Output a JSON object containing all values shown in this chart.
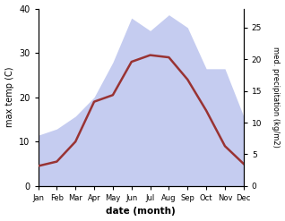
{
  "months": [
    "Jan",
    "Feb",
    "Mar",
    "Apr",
    "May",
    "Jun",
    "Jul",
    "Aug",
    "Sep",
    "Oct",
    "Nov",
    "Dec"
  ],
  "max_temp": [
    4.5,
    5.5,
    10.0,
    19.0,
    20.5,
    28.0,
    29.5,
    29.0,
    24.0,
    17.0,
    9.0,
    5.0
  ],
  "precipitation": [
    8.0,
    9.0,
    11.0,
    14.0,
    19.5,
    26.5,
    24.5,
    27.0,
    25.0,
    18.5,
    18.5,
    11.0
  ],
  "temp_color": "#993333",
  "precip_fill_color": "#c5ccf0",
  "temp_ylim": [
    0,
    40
  ],
  "precip_ylim": [
    0,
    28
  ],
  "temp_yticks": [
    0,
    10,
    20,
    30,
    40
  ],
  "precip_yticks": [
    0,
    5,
    10,
    15,
    20,
    25
  ],
  "ylabel_left": "max temp (C)",
  "ylabel_right": "med. precipitation (kg/m2)",
  "xlabel": "date (month)",
  "figsize": [
    3.18,
    2.47
  ],
  "dpi": 100
}
